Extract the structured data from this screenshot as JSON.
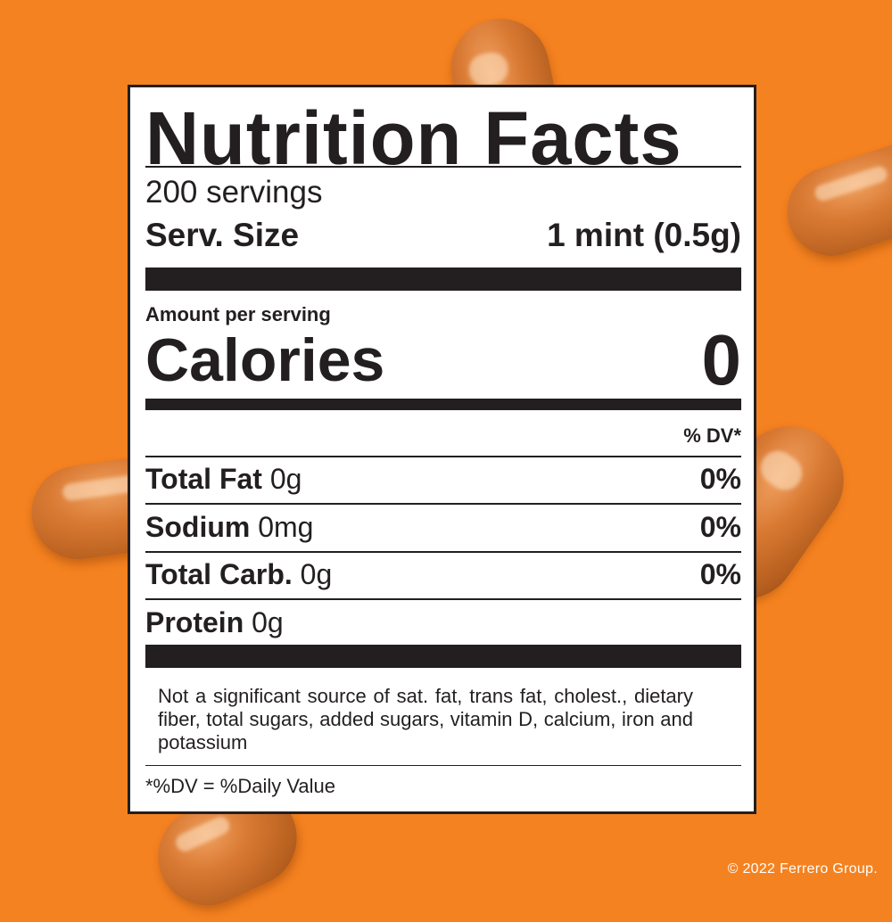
{
  "colors": {
    "background": "#f58220",
    "candy": "#c8702f",
    "ink": "#231f20"
  },
  "label": {
    "title": "Nutrition Facts",
    "servings": "200 servings",
    "serving_size_label": "Serv. Size",
    "serving_size_value": "1 mint (0.5g)",
    "amount_per_serving": "Amount per serving",
    "calories_label": "Calories",
    "calories_value": "0",
    "dv_header": "% DV*",
    "nutrients": [
      {
        "name": "Total Fat",
        "amount": "0g",
        "dv": "0%"
      },
      {
        "name": "Sodium",
        "amount": "0mg",
        "dv": "0%"
      },
      {
        "name": "Total Carb.",
        "amount": "0g",
        "dv": "0%"
      },
      {
        "name": "Protein",
        "amount": "0g"
      }
    ],
    "footnote": "Not a significant source of sat. fat, trans fat, cholest., dietary fiber, total sugars, added sugars, vitamin D, calcium, iron and potassium",
    "dv_definition": "*%DV = %Daily Value"
  },
  "copyright": "© 2022 Ferrero Group."
}
